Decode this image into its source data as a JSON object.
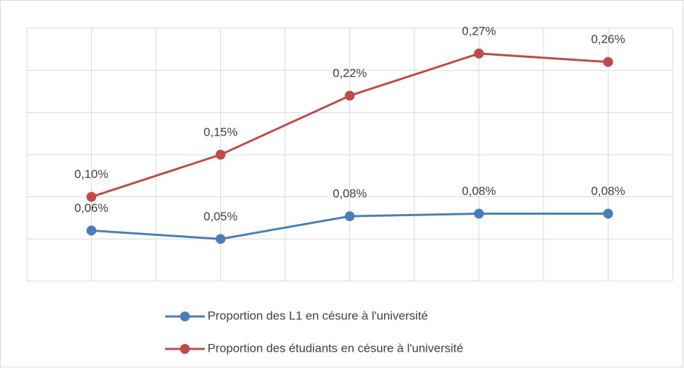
{
  "chart_data": {
    "type": "line",
    "categories": [
      null,
      null,
      null,
      null,
      null
    ],
    "series": [
      {
        "name": "Proportion des L1 en césure à l'université",
        "color": "#4a7ebb",
        "values": [
          0.06,
          0.05,
          0.077,
          0.08,
          0.08
        ],
        "value_labels": [
          "0,06%",
          "0,05%",
          "0,08%",
          "0,08%",
          "0,08%"
        ]
      },
      {
        "name": "Proportion des étudiants en césure à l'université",
        "color": "#be4b48",
        "values": [
          0.1,
          0.15,
          0.22,
          0.27,
          0.26
        ],
        "value_labels": [
          "0,10%",
          "0,15%",
          "0,22%",
          "0,27%",
          "0,26%"
        ]
      }
    ],
    "ylim": [
      0,
      0.3
    ],
    "yticks": [
      0,
      0.05,
      0.1,
      0.15,
      0.2,
      0.25,
      0.3
    ],
    "grid": true,
    "legend": "bottom"
  }
}
